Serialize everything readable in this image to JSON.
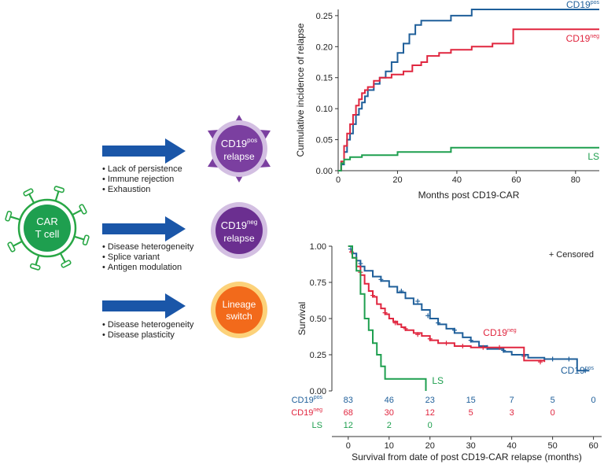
{
  "schematic": {
    "cart_cell": {
      "line1": "CAR",
      "line2": "T cell"
    },
    "outcomes": [
      {
        "base": "CD19",
        "sup": "pos",
        "line2": "relapse",
        "mechanisms": [
          "Lack of persistence",
          "Immune rejection",
          "Exhaustion"
        ]
      },
      {
        "base": "CD19",
        "sup": "neg",
        "line2": "relapse",
        "mechanisms": [
          "Disease heterogeneity",
          "Splice variant",
          "Antigen modulation"
        ]
      },
      {
        "line1": "Lineage",
        "line2": "switch",
        "mechanisms": [
          "Disease heterogeneity",
          "Disease plasticity"
        ]
      }
    ]
  },
  "colors": {
    "pos": "#1f5f9a",
    "neg": "#e0263f",
    "ls": "#1e9f4f",
    "arrow": "#1a56a8",
    "cell_green": "#28a745",
    "purple": "#7b3fa0",
    "orange": "#f26a1b"
  },
  "chart_data": [
    {
      "type": "line",
      "title": "",
      "xlabel": "Months post CD19-CAR",
      "ylabel": "Cumulative incidence of relapse",
      "xlim": [
        0,
        88
      ],
      "ylim": [
        0,
        0.26
      ],
      "xticks": [
        "0",
        "20",
        "40",
        "60",
        "80"
      ],
      "yticks": [
        "0.00",
        "0.05",
        "0.10",
        "0.15",
        "0.20",
        "0.25"
      ],
      "series": [
        {
          "name": "CD19",
          "sup": "pos",
          "color": "#1f5f9a",
          "points": [
            [
              0,
              0
            ],
            [
              1,
              0.01
            ],
            [
              2,
              0.03
            ],
            [
              3,
              0.05
            ],
            [
              4,
              0.06
            ],
            [
              5,
              0.075
            ],
            [
              6,
              0.09
            ],
            [
              7,
              0.1
            ],
            [
              8,
              0.11
            ],
            [
              9,
              0.12
            ],
            [
              10,
              0.13
            ],
            [
              12,
              0.14
            ],
            [
              14,
              0.15
            ],
            [
              16,
              0.16
            ],
            [
              18,
              0.175
            ],
            [
              20,
              0.19
            ],
            [
              22,
              0.205
            ],
            [
              24,
              0.22
            ],
            [
              26,
              0.235
            ],
            [
              28,
              0.242
            ],
            [
              38,
              0.25
            ],
            [
              45,
              0.26
            ],
            [
              88,
              0.26
            ]
          ]
        },
        {
          "name": "CD19",
          "sup": "neg",
          "color": "#e0263f",
          "points": [
            [
              0,
              0
            ],
            [
              1,
              0.015
            ],
            [
              2,
              0.04
            ],
            [
              3,
              0.06
            ],
            [
              4,
              0.075
            ],
            [
              5,
              0.09
            ],
            [
              6,
              0.105
            ],
            [
              7,
              0.115
            ],
            [
              8,
              0.125
            ],
            [
              9,
              0.13
            ],
            [
              10,
              0.135
            ],
            [
              12,
              0.145
            ],
            [
              14,
              0.15
            ],
            [
              18,
              0.155
            ],
            [
              22,
              0.16
            ],
            [
              25,
              0.17
            ],
            [
              28,
              0.175
            ],
            [
              30,
              0.185
            ],
            [
              34,
              0.19
            ],
            [
              38,
              0.195
            ],
            [
              45,
              0.2
            ],
            [
              52,
              0.205
            ],
            [
              59,
              0.228
            ],
            [
              88,
              0.228
            ]
          ]
        },
        {
          "name": "LS",
          "color": "#1e9f4f",
          "points": [
            [
              0,
              0
            ],
            [
              1,
              0.012
            ],
            [
              2,
              0.018
            ],
            [
              4,
              0.022
            ],
            [
              8,
              0.025
            ],
            [
              20,
              0.03
            ],
            [
              38,
              0.037
            ],
            [
              88,
              0.037
            ]
          ]
        }
      ]
    },
    {
      "type": "line",
      "title": "",
      "xlabel": "Survival from date of post CD19-CAR relapse (months)",
      "ylabel": "Survival",
      "legend": "+ Censored",
      "xlim": [
        -4,
        62
      ],
      "ylim": [
        0,
        1.0
      ],
      "xticks": [
        "0",
        "10",
        "20",
        "30",
        "40",
        "50",
        "60"
      ],
      "yticks": [
        "0.00",
        "0.25",
        "0.50",
        "0.75",
        "1.00"
      ],
      "series": [
        {
          "name": "CD19",
          "sup": "pos",
          "color": "#1f5f9a",
          "points": [
            [
              0,
              1.0
            ],
            [
              1,
              0.95
            ],
            [
              2,
              0.9
            ],
            [
              3,
              0.86
            ],
            [
              4,
              0.83
            ],
            [
              6,
              0.79
            ],
            [
              8,
              0.76
            ],
            [
              10,
              0.72
            ],
            [
              12,
              0.68
            ],
            [
              14,
              0.64
            ],
            [
              16,
              0.6
            ],
            [
              18,
              0.56
            ],
            [
              20,
              0.5
            ],
            [
              22,
              0.46
            ],
            [
              24,
              0.43
            ],
            [
              26,
              0.4
            ],
            [
              28,
              0.37
            ],
            [
              30,
              0.34
            ],
            [
              32,
              0.31
            ],
            [
              34,
              0.29
            ],
            [
              38,
              0.27
            ],
            [
              40,
              0.25
            ],
            [
              44,
              0.23
            ],
            [
              48,
              0.22
            ],
            [
              56,
              0.14
            ],
            [
              59,
              0.14
            ]
          ],
          "censored": [
            [
              0.6,
              0.98
            ],
            [
              3,
              0.88
            ],
            [
              8,
              0.77
            ],
            [
              13,
              0.69
            ],
            [
              17,
              0.62
            ],
            [
              19.5,
              0.52
            ],
            [
              22,
              0.47
            ],
            [
              26,
              0.42
            ],
            [
              30,
              0.35
            ],
            [
              34,
              0.3
            ],
            [
              38,
              0.28
            ],
            [
              43,
              0.24
            ],
            [
              50,
              0.22
            ],
            [
              54,
              0.22
            ],
            [
              58,
              0.14
            ]
          ]
        },
        {
          "name": "CD19",
          "sup": "neg",
          "color": "#e0263f",
          "points": [
            [
              0,
              1.0
            ],
            [
              1,
              0.92
            ],
            [
              2,
              0.86
            ],
            [
              3,
              0.8
            ],
            [
              4,
              0.74
            ],
            [
              5,
              0.69
            ],
            [
              6,
              0.65
            ],
            [
              7,
              0.6
            ],
            [
              8,
              0.57
            ],
            [
              9,
              0.53
            ],
            [
              10,
              0.5
            ],
            [
              11,
              0.48
            ],
            [
              12,
              0.46
            ],
            [
              13,
              0.44
            ],
            [
              14,
              0.42
            ],
            [
              16,
              0.4
            ],
            [
              18,
              0.38
            ],
            [
              20,
              0.35
            ],
            [
              22,
              0.33
            ],
            [
              26,
              0.31
            ],
            [
              30,
              0.3
            ],
            [
              36,
              0.3
            ],
            [
              42,
              0.3
            ],
            [
              43,
              0.21
            ],
            [
              48,
              0.2
            ]
          ],
          "censored": [
            [
              0.8,
              0.96
            ],
            [
              3,
              0.82
            ],
            [
              6,
              0.66
            ],
            [
              9,
              0.54
            ],
            [
              11.5,
              0.47
            ],
            [
              14,
              0.43
            ],
            [
              17,
              0.39
            ],
            [
              20,
              0.36
            ],
            [
              24,
              0.33
            ],
            [
              28,
              0.31
            ],
            [
              33,
              0.3
            ],
            [
              37,
              0.3
            ],
            [
              47,
              0.2
            ]
          ]
        },
        {
          "name": "LS",
          "color": "#1e9f4f",
          "points": [
            [
              0,
              1.0
            ],
            [
              1,
              0.92
            ],
            [
              2,
              0.83
            ],
            [
              3,
              0.67
            ],
            [
              4,
              0.5
            ],
            [
              5,
              0.42
            ],
            [
              6,
              0.33
            ],
            [
              7,
              0.25
            ],
            [
              8,
              0.17
            ],
            [
              9,
              0.083
            ],
            [
              19,
              0.083
            ],
            [
              19,
              0.0
            ]
          ],
          "censored": []
        }
      ],
      "labels": [
        {
          "text": "CD19",
          "sup": "neg",
          "x": 33,
          "y": 0.38
        },
        {
          "text": "CD19",
          "sup": "pos",
          "x": 52,
          "y": 0.12
        },
        {
          "text": "LS",
          "x": 20.5,
          "y": 0.05
        }
      ],
      "risk_table": {
        "x": [
          0,
          10,
          20,
          30,
          40,
          50,
          60
        ],
        "rows": [
          {
            "name": "CD19",
            "sup": "pos",
            "color": "#1f5f9a",
            "values": [
              "83",
              "46",
              "23",
              "15",
              "7",
              "5",
              "0"
            ]
          },
          {
            "name": "CD19",
            "sup": "neg",
            "color": "#e0263f",
            "values": [
              "68",
              "30",
              "12",
              "5",
              "3",
              "0",
              ""
            ]
          },
          {
            "name": "LS",
            "color": "#1e9f4f",
            "values": [
              "12",
              "2",
              "0",
              "",
              "",
              "",
              ""
            ]
          }
        ]
      }
    }
  ]
}
